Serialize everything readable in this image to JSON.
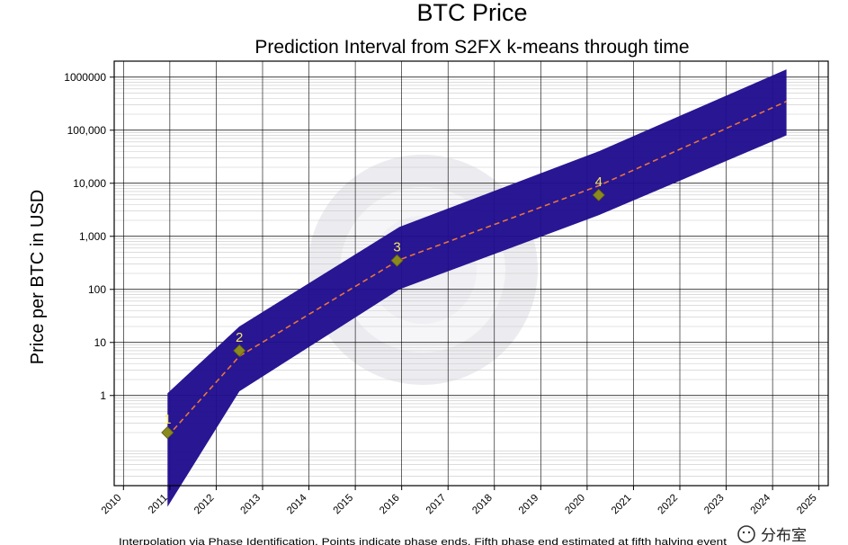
{
  "chart_data": {
    "type": "area",
    "title": "BTC Price",
    "subtitle": "Prediction Interval from S2FX k-means through time",
    "ylabel": "Price per BTC in USD",
    "xlabel": "",
    "y_scale": "log",
    "ylim": [
      0.02,
      2000000
    ],
    "xlim": [
      2009.8,
      2025.2
    ],
    "x_ticks": [
      2010,
      2011,
      2012,
      2013,
      2014,
      2015,
      2016,
      2017,
      2018,
      2019,
      2020,
      2021,
      2022,
      2023,
      2024,
      2025
    ],
    "x_tick_labels": [
      "2010",
      "2011",
      "2012",
      "2013",
      "2014",
      "2015",
      "2016",
      "2017",
      "2018",
      "2019",
      "2020",
      "2021",
      "2022",
      "2023",
      "2024",
      "2025"
    ],
    "y_ticks": [
      1,
      10,
      100,
      1000,
      10000,
      100000,
      1000000
    ],
    "y_tick_labels": [
      "1",
      "10",
      "100",
      "1,000",
      "10,000",
      "100,000",
      "1000000"
    ],
    "grid": true,
    "band": {
      "x": [
        2010.95,
        2012.5,
        2015.95,
        2020.25,
        2024.3
      ],
      "upper": [
        1.1,
        20,
        1500,
        40000,
        1400000
      ],
      "lower": [
        0.008,
        1.2,
        100,
        2500,
        80000
      ]
    },
    "median_line": {
      "x": [
        2010.95,
        2012.5,
        2015.95,
        2020.25,
        2024.3
      ],
      "values": [
        0.17,
        5.5,
        360,
        9000,
        350000
      ]
    },
    "phase_points": [
      {
        "label": "1",
        "x": 2010.95,
        "y": 0.2
      },
      {
        "label": "2",
        "x": 2012.5,
        "y": 7
      },
      {
        "label": "3",
        "x": 2015.9,
        "y": 350
      },
      {
        "label": "4",
        "x": 2020.25,
        "y": 6000
      }
    ],
    "footnote": "Interpolation via Phase Identification. Points indicate phase ends. Fifth phase end estimated at fifth halving event",
    "colors": {
      "band": "#1f0c8f",
      "median_line": "#e8753a",
      "marker": "#8a8a1e",
      "phase_label": "#f5e663",
      "grid": "#000000",
      "minor_grid": "#c8c8c8"
    }
  },
  "watermark": {
    "text": "分布室",
    "icon": "wechat-icon"
  }
}
